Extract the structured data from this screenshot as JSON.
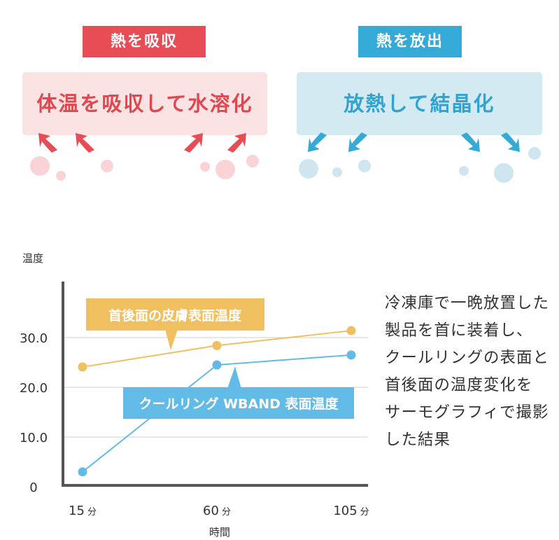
{
  "diagram": {
    "absorb_tag": "熱を吸収",
    "absorb_text": "体温を吸収して水溶化",
    "release_tag": "熱を放出",
    "release_text": "放熱して結晶化",
    "colors": {
      "red": "#e84c55",
      "blue": "#36aad6",
      "orange": "#f0c060",
      "chart_blue": "#62bbe6"
    }
  },
  "caption": "冷凍庫で一晩放置した\n製品を首に装着し、\nクールリングの表面と\n首後面の温度変化を\nサーモグラフィで撮影\nした結果",
  "chart_data": {
    "type": "line",
    "ylabel": "温度",
    "xlabel": "時間",
    "categories": [
      "15分",
      "60分",
      "105分"
    ],
    "x_ticks": [
      {
        "num": "15",
        "unit": "分"
      },
      {
        "num": "60",
        "unit": "分"
      },
      {
        "num": "105",
        "unit": "分"
      }
    ],
    "y_ticks": [
      "0",
      "10.0",
      "20.0",
      "30.0"
    ],
    "ylim": [
      0,
      40
    ],
    "grid": true,
    "series": [
      {
        "name": "首後面の皮膚表面温度",
        "values": [
          24.1,
          28.4,
          31.4
        ],
        "color": "#f0c060"
      },
      {
        "name": "クールリング WBAND 表面温度",
        "values": [
          3.0,
          24.5,
          26.5
        ],
        "color": "#62bbe6"
      }
    ]
  }
}
